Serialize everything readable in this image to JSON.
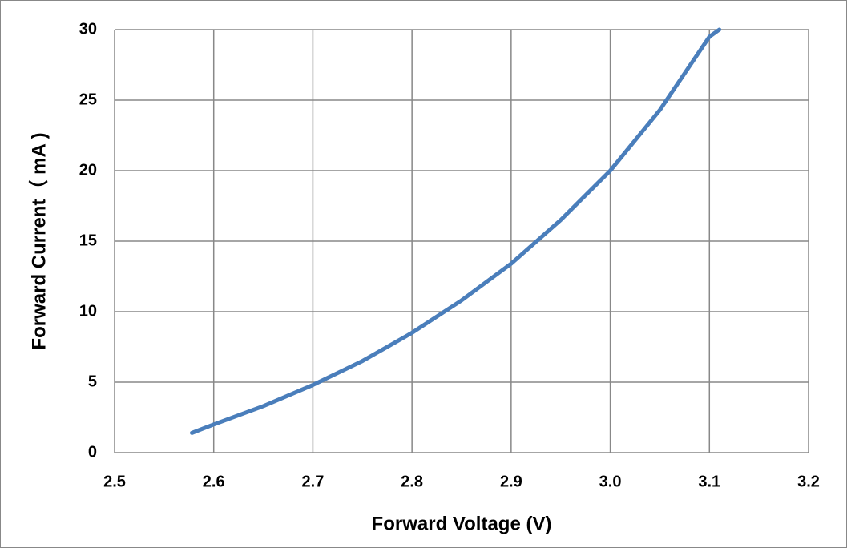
{
  "chart_data": {
    "type": "line",
    "x_label": "Forward Voltage (V)",
    "y_label": "Forward Current（ mA )",
    "x": [
      2.578,
      2.6,
      2.65,
      2.7,
      2.75,
      2.8,
      2.85,
      2.9,
      2.95,
      3.0,
      3.05,
      3.1,
      3.11
    ],
    "series": [
      {
        "name": "Forward Current",
        "color": "#4a7ebb",
        "values": [
          1.4,
          2.0,
          3.3,
          4.8,
          6.5,
          8.5,
          10.8,
          13.4,
          16.5,
          20.0,
          24.3,
          29.5,
          30
        ]
      }
    ],
    "xlim": [
      2.5,
      3.2
    ],
    "xticks": [
      2.5,
      2.6,
      2.7,
      2.8,
      2.9,
      {
        "value": 3,
        "label": "3.0"
      },
      3.1,
      3.2
    ],
    "ylim": [
      0,
      30
    ],
    "yticks": [
      0,
      5,
      10,
      15,
      20,
      25,
      30
    ],
    "grid": true
  }
}
